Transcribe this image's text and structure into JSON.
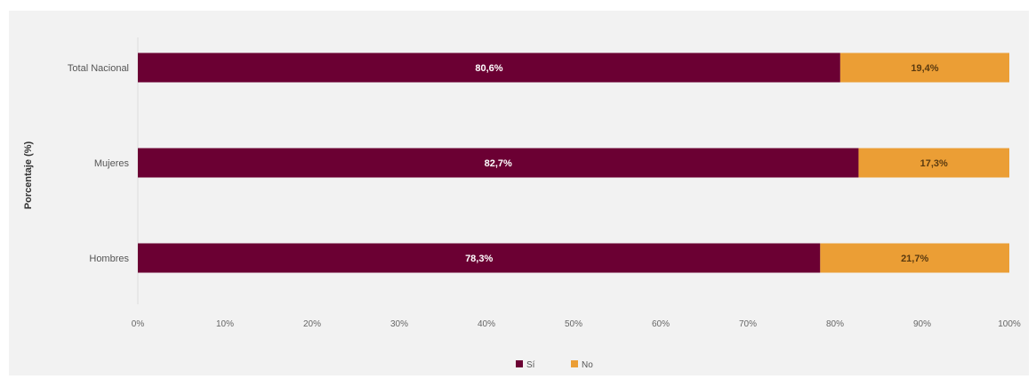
{
  "chart_data": {
    "type": "bar",
    "orientation": "horizontal",
    "stacked": true,
    "percent": true,
    "categories": [
      "Total Nacional",
      "Mujeres",
      "Hombres"
    ],
    "series": [
      {
        "name": "Sí",
        "values": [
          80.6,
          82.7,
          78.3
        ],
        "labels": [
          "80,6%",
          "82,7%",
          "78,3%"
        ],
        "color": "#6b0033"
      },
      {
        "name": "No",
        "values": [
          19.4,
          17.3,
          21.7
        ],
        "labels": [
          "19,4%",
          "17,3%",
          "21,7%"
        ],
        "color": "#eb9e35"
      }
    ],
    "title": "",
    "xlabel": "",
    "ylabel": "Porcentaje (%)",
    "xlim": [
      0,
      100
    ],
    "xticks": [
      "0%",
      "10%",
      "20%",
      "30%",
      "40%",
      "50%",
      "60%",
      "70%",
      "80%",
      "90%",
      "100%"
    ],
    "grid": false,
    "legend": "bottom-center"
  }
}
